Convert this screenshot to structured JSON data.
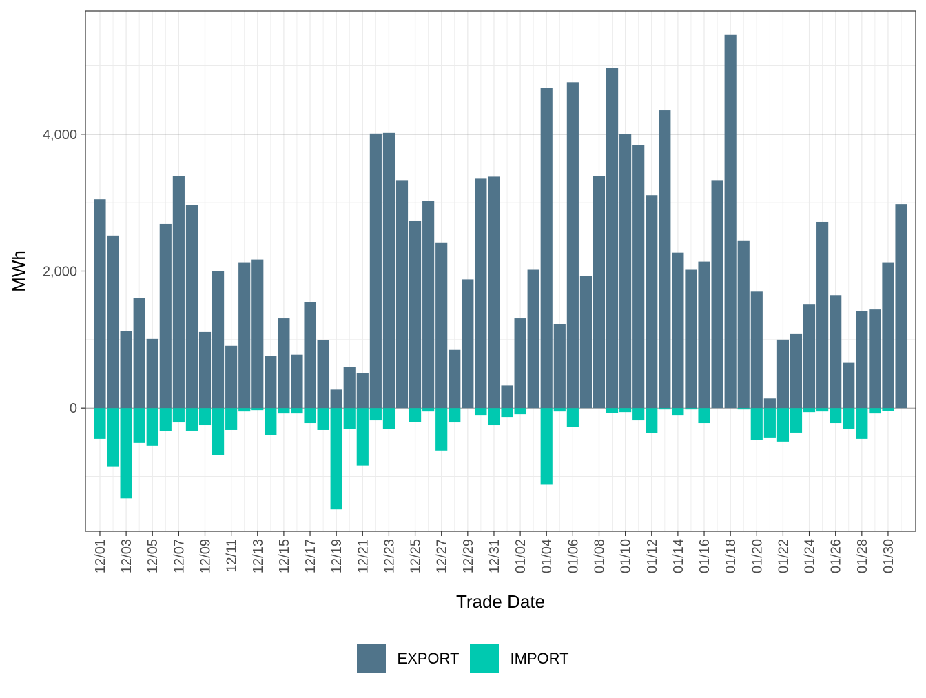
{
  "chart_data": {
    "type": "bar",
    "xlabel": "Trade Date",
    "ylabel": "MWh",
    "ylim": [
      -1800,
      5800
    ],
    "yticks": [
      0,
      2000,
      4000
    ],
    "ytick_labels": [
      "0",
      "2,000",
      "4,000"
    ],
    "grid": true,
    "legend_position": "bottom",
    "colors": {
      "EXPORT": "#50748a",
      "IMPORT": "#00c9b0"
    },
    "categories": [
      "12/01",
      "12/02",
      "12/03",
      "12/04",
      "12/05",
      "12/06",
      "12/07",
      "12/08",
      "12/09",
      "12/10",
      "12/11",
      "12/12",
      "12/13",
      "12/14",
      "12/15",
      "12/16",
      "12/17",
      "12/18",
      "12/19",
      "12/20",
      "12/21",
      "12/22",
      "12/23",
      "12/24",
      "12/25",
      "12/26",
      "12/27",
      "12/28",
      "12/29",
      "12/30",
      "12/31",
      "01/01",
      "01/02",
      "01/03",
      "01/04",
      "01/05",
      "01/06",
      "01/07",
      "01/08",
      "01/09",
      "01/10",
      "01/11",
      "01/12",
      "01/13",
      "01/14",
      "01/15",
      "01/16",
      "01/17",
      "01/18",
      "01/19",
      "01/20",
      "01/21",
      "01/22",
      "01/23",
      "01/24",
      "01/25",
      "01/26",
      "01/27",
      "01/28",
      "01/29",
      "01/30",
      "01/31"
    ],
    "tick_labels": [
      "12/01",
      "12/03",
      "12/05",
      "12/07",
      "12/09",
      "12/11",
      "12/13",
      "12/15",
      "12/17",
      "12/19",
      "12/21",
      "12/23",
      "12/25",
      "12/27",
      "12/29",
      "12/31",
      "01/02",
      "01/04",
      "01/06",
      "01/08",
      "01/10",
      "01/12",
      "01/14",
      "01/16",
      "01/18",
      "01/20",
      "01/22",
      "01/24",
      "01/26",
      "01/28",
      "01/30"
    ],
    "series": [
      {
        "name": "EXPORT",
        "values": [
          3050,
          2520,
          1120,
          1610,
          1010,
          2690,
          3390,
          2970,
          1110,
          2000,
          910,
          2130,
          2170,
          760,
          1310,
          780,
          1550,
          990,
          270,
          600,
          510,
          4010,
          4020,
          3330,
          2730,
          3030,
          2420,
          850,
          1880,
          3350,
          3380,
          330,
          1310,
          2020,
          4680,
          1230,
          4760,
          1930,
          3390,
          4970,
          4000,
          3840,
          3110,
          4350,
          2270,
          2020,
          2140,
          3330,
          5450,
          2440,
          1700,
          140,
          1000,
          1080,
          1520,
          2720,
          1650,
          660,
          1420,
          1440,
          2130,
          2980
        ]
      },
      {
        "name": "IMPORT",
        "values": [
          -450,
          -860,
          -1320,
          -510,
          -550,
          -340,
          -210,
          -330,
          -250,
          -690,
          -320,
          -50,
          -30,
          -400,
          -80,
          -80,
          -220,
          -320,
          -1480,
          -310,
          -840,
          -180,
          -310,
          0,
          -200,
          -50,
          -620,
          -210,
          0,
          -110,
          -250,
          -130,
          -90,
          0,
          -1120,
          -50,
          -270,
          0,
          0,
          -70,
          -60,
          -180,
          -370,
          -20,
          -110,
          -20,
          -220,
          0,
          0,
          -20,
          -470,
          -430,
          -490,
          -360,
          -60,
          -50,
          -220,
          -300,
          -450,
          -80,
          -40,
          0
        ]
      }
    ]
  }
}
